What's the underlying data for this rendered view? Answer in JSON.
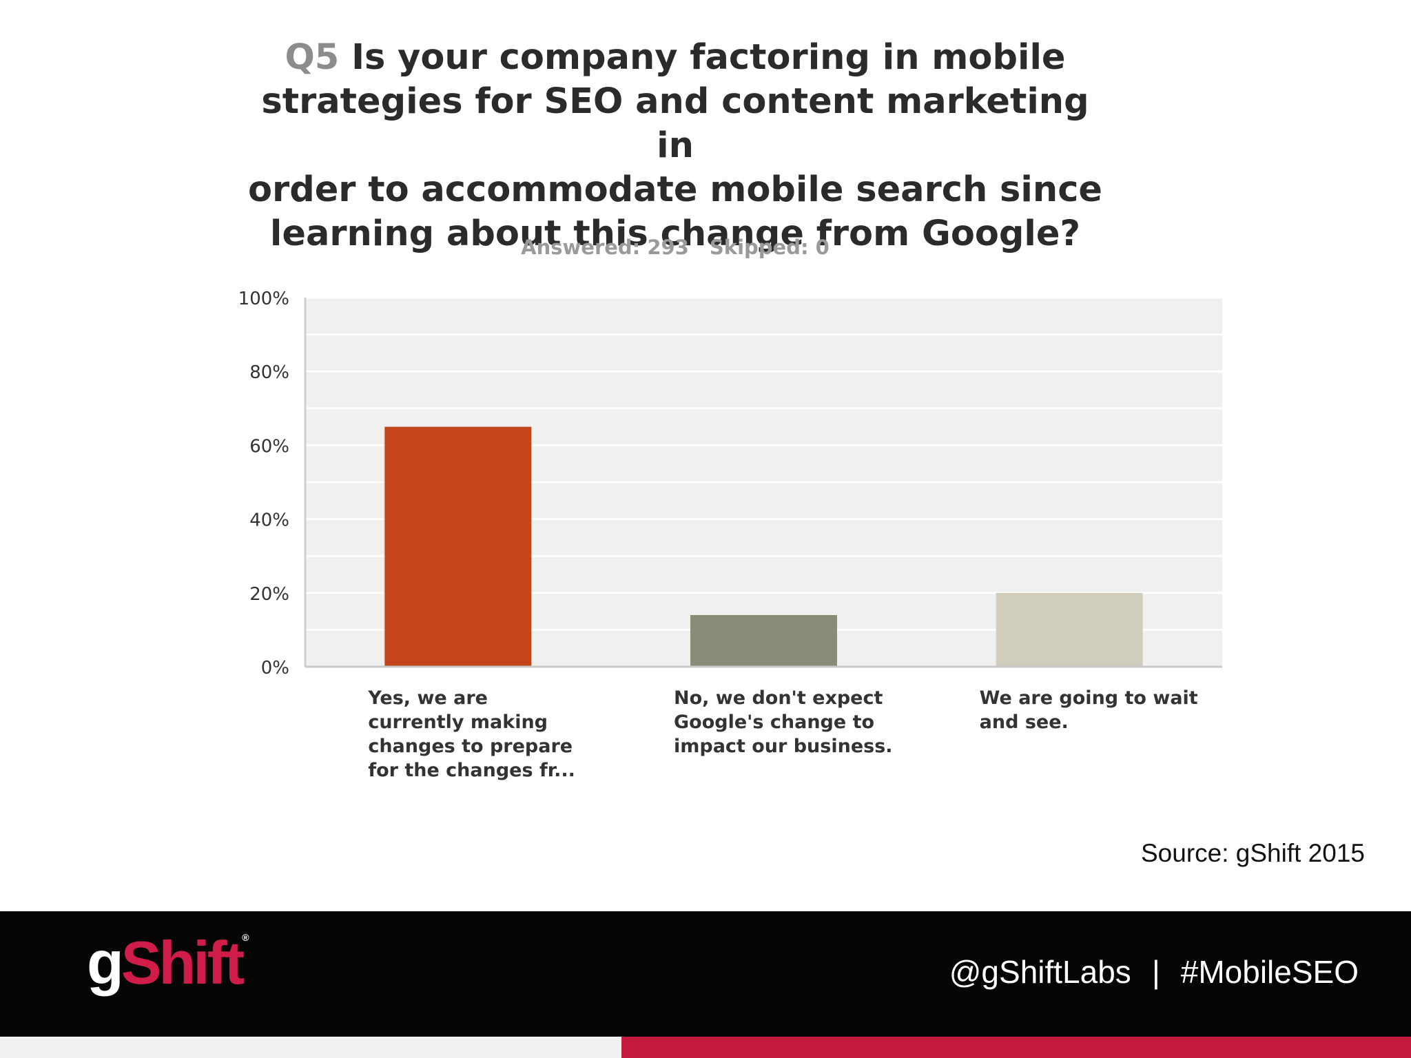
{
  "slide": {
    "question_number": "Q5",
    "question_lines": [
      "Is your company factoring in mobile",
      "strategies for SEO and content marketing in",
      "order to accommodate mobile search since",
      "learning about this change from Google?"
    ],
    "answered": "Answered: 293",
    "skipped": "Skipped: 0",
    "source": "Source: gShift 2015"
  },
  "footer": {
    "logo_g": "g",
    "logo_shift": "Shift",
    "logo_mark": "®",
    "handle": "@gShiftLabs",
    "separator": "|",
    "hashtag": "#MobileSEO",
    "colors": {
      "background": "#050505",
      "accent": "#c5193d",
      "stripe": "#f1f1f1"
    }
  },
  "chart_data": {
    "type": "bar",
    "categories": [
      "Yes, we are\ncurrently making\nchanges to prepare\nfor the changes fr...",
      "No, we don't expect\nGoogle's change to\nimpact our business.",
      "We are going to wait\nand see."
    ],
    "values": [
      65,
      14,
      20
    ],
    "value_unit": "%",
    "colors": [
      "#c4441c",
      "#8a8c7a",
      "#d0cdbd"
    ],
    "ylim": [
      0,
      100
    ],
    "yticks": [
      "0%",
      "20%",
      "40%",
      "60%",
      "80%",
      "100%"
    ],
    "ytick_values": [
      0,
      20,
      40,
      60,
      80,
      100
    ],
    "grid": true,
    "plot_background": "#f0f0f0",
    "legend": "none"
  }
}
